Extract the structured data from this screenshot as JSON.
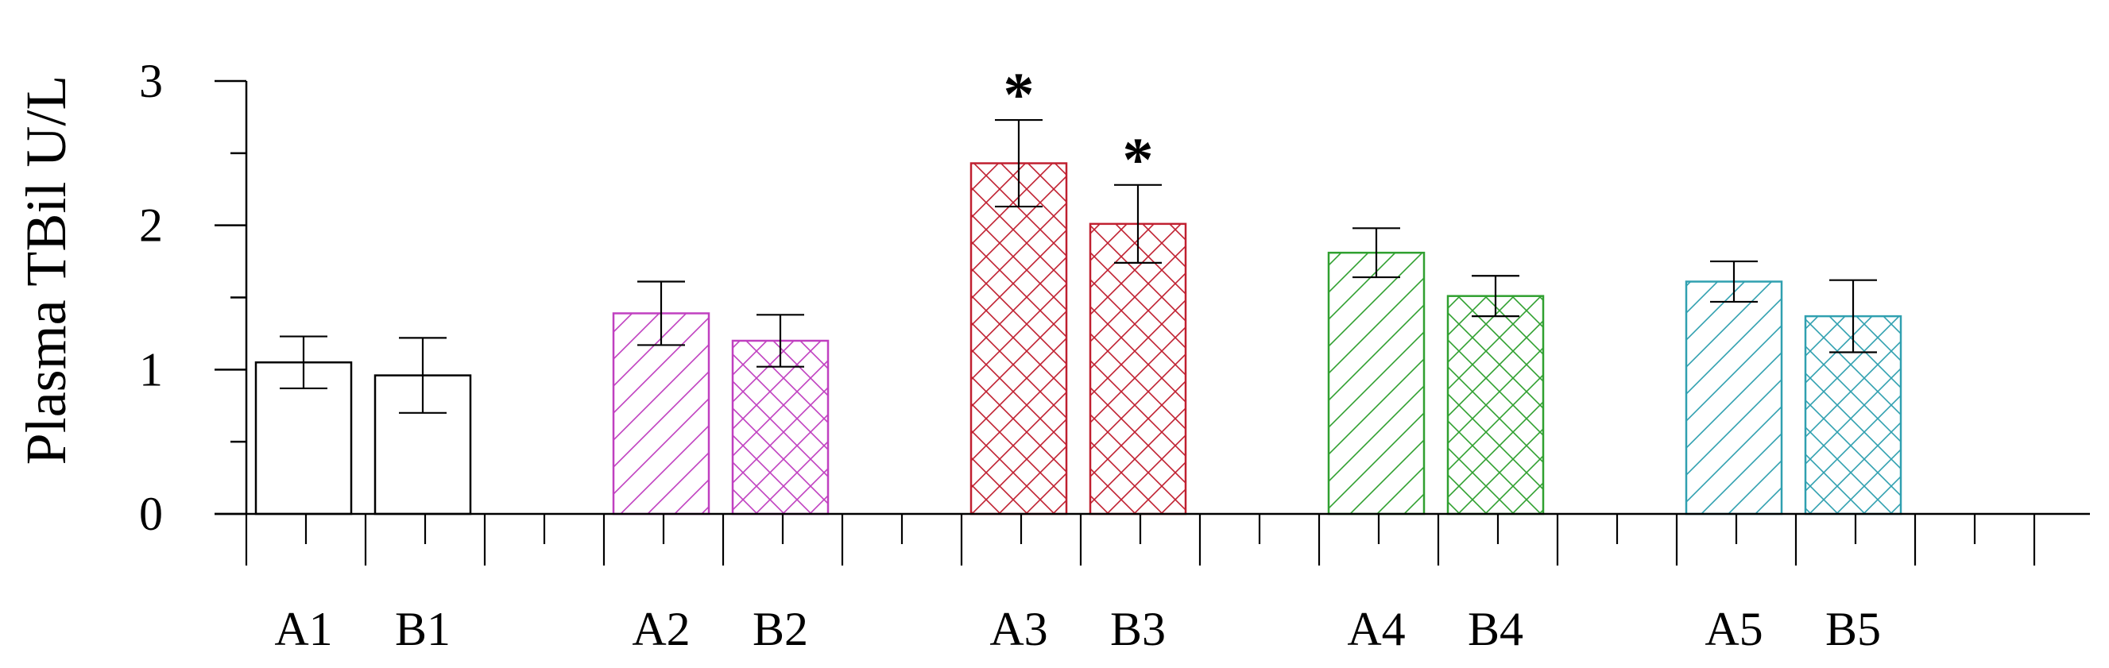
{
  "chart_data": {
    "type": "bar",
    "title": "",
    "xlabel": "",
    "ylabel": "Plasma TBil U/L",
    "ylim": [
      0,
      3
    ],
    "yticks": [
      0,
      1,
      2,
      3
    ],
    "y_minor_step": 0.5,
    "grid": false,
    "legend": "none",
    "groups": [
      {
        "name": "1",
        "color": "#000000",
        "bars": [
          {
            "label": "A1",
            "value": 1.05,
            "error": 0.18,
            "pattern": "none",
            "sig": ""
          },
          {
            "label": "B1",
            "value": 0.96,
            "error": 0.26,
            "pattern": "none",
            "sig": ""
          }
        ]
      },
      {
        "name": "2",
        "color": "#c040c0",
        "bars": [
          {
            "label": "A2",
            "value": 1.39,
            "error": 0.22,
            "pattern": "diagonal",
            "sig": ""
          },
          {
            "label": "B2",
            "value": 1.2,
            "error": 0.18,
            "pattern": "crosshatch",
            "sig": ""
          }
        ]
      },
      {
        "name": "3",
        "color": "#c02030",
        "bars": [
          {
            "label": "A3",
            "value": 2.43,
            "error": 0.3,
            "pattern": "crosshatch",
            "sig": "*"
          },
          {
            "label": "B3",
            "value": 2.01,
            "error": 0.27,
            "pattern": "crosshatch",
            "sig": "*"
          }
        ]
      },
      {
        "name": "4",
        "color": "#30a030",
        "bars": [
          {
            "label": "A4",
            "value": 1.81,
            "error": 0.17,
            "pattern": "diagonal",
            "sig": ""
          },
          {
            "label": "B4",
            "value": 1.51,
            "error": 0.14,
            "pattern": "crosshatch",
            "sig": ""
          }
        ]
      },
      {
        "name": "5",
        "color": "#30a0b0",
        "bars": [
          {
            "label": "A5",
            "value": 1.61,
            "error": 0.14,
            "pattern": "diagonal",
            "sig": ""
          },
          {
            "label": "B5",
            "value": 1.37,
            "error": 0.25,
            "pattern": "crosshatch",
            "sig": ""
          }
        ]
      }
    ]
  }
}
